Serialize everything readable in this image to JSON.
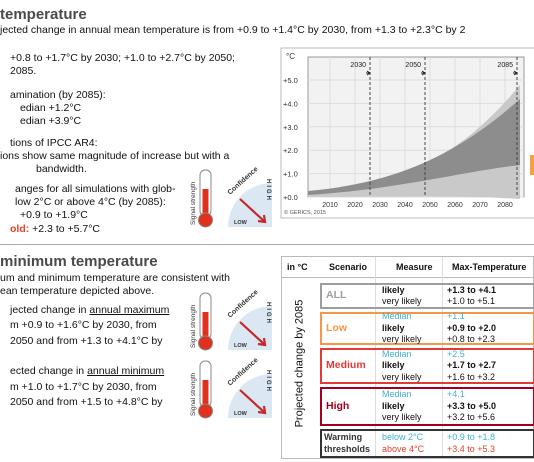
{
  "temperature": {
    "heading": "temperature",
    "intro": "jected change in annual mean temperature is from +0.9 to +1.4°C by 2030, from +1.3 to +2.3°C by 2",
    "range_line1": "+0.8 to +1.7°C by 2030; +1.0 to +2.7°C by 2050;",
    "range_line2": "2085.",
    "examination": "amination (by 2085):",
    "median_low": "edian +1.2°C",
    "median_high": "edian +3.9°C",
    "ipcc": "tions of IPCC AR4:",
    "ipcc_line1": "ions show same magnitude of increase but with a",
    "ipcc_line2": "bandwidth.",
    "thresholds_line1": "anges for all simulations with glob-",
    "thresholds_line2": "low 2°C or above 4°C (by 2085):",
    "below": "+0.9 to +1.9°C",
    "above_label": "old:",
    "above": "+2.3 to +5.7°C"
  },
  "chart": {
    "unit": "°C",
    "yticks": [
      "+0.0",
      "+1.0",
      "+2.0",
      "+3.0",
      "+4.0",
      "+5.0"
    ],
    "xticks": [
      "2010",
      "2020",
      "2030",
      "2040",
      "2050",
      "2060",
      "2070",
      "2080"
    ],
    "periods": [
      "2030",
      "2050",
      "2085"
    ],
    "credit": "© GERICS, 2015"
  },
  "minmax": {
    "heading": "minimum temperature",
    "intro_line1": "um and minimum temperature are consistent with",
    "intro_line2": "ean temperature depicted above.",
    "max_line1_a": "jected change in ",
    "max_line1_b": "annual maximum",
    "max_line2": "m +0.9 to +1.6°C by 2030, from",
    "max_line3": "2050 and from +1.3 to +4.1°C by",
    "min_line1_a": "ected change in ",
    "min_line1_b": "annual minimum",
    "min_line2": "m +1.0 to +1.7°C by 2030, from",
    "min_line3": "2050 and from +1.5 to +4.8°C by"
  },
  "icons": [
    {
      "signal": "Signal strength",
      "confidence": "Confidence",
      "high": "HIGH",
      "low": "LOW"
    },
    {
      "signal": "Signal strength",
      "confidence": "Confidence",
      "high": "HIGH",
      "low": "LOW"
    },
    {
      "signal": "Signal strength",
      "confidence": "Confidence",
      "high": "HIGH",
      "low": "LOW"
    }
  ],
  "table": {
    "header": [
      "in °C",
      "Scenario",
      "Measure",
      "Max-Temperature"
    ],
    "side_label": "Projected change by 2085",
    "rows": [
      {
        "scenario": "ALL",
        "measures": [
          "likely",
          "very likely"
        ],
        "values": [
          "+1.3 to +4.1",
          "+1.0 to +5.1"
        ]
      },
      {
        "scenario": "Low",
        "measures": [
          "Median",
          "likely",
          "very likely"
        ],
        "values": [
          "+1.1",
          "+0.9 to +2.0",
          "+0.8 to +2.3"
        ]
      },
      {
        "scenario": "Medium",
        "measures": [
          "Median",
          "likely",
          "very likely"
        ],
        "values": [
          "+2.5",
          "+1.7 to +2.7",
          "+1.6 to +3.2"
        ]
      },
      {
        "scenario": "High",
        "measures": [
          "Median",
          "likely",
          "very likely"
        ],
        "values": [
          "+4.1",
          "+3.3 to +5.0",
          "+3.2 to +5.6"
        ]
      },
      {
        "scenario": "Warming thresholds",
        "measures": [
          "below 2°C",
          "above 4°C"
        ],
        "values": [
          "+0.9 to +1.8",
          "+3.4 to +5.3"
        ]
      }
    ]
  }
}
